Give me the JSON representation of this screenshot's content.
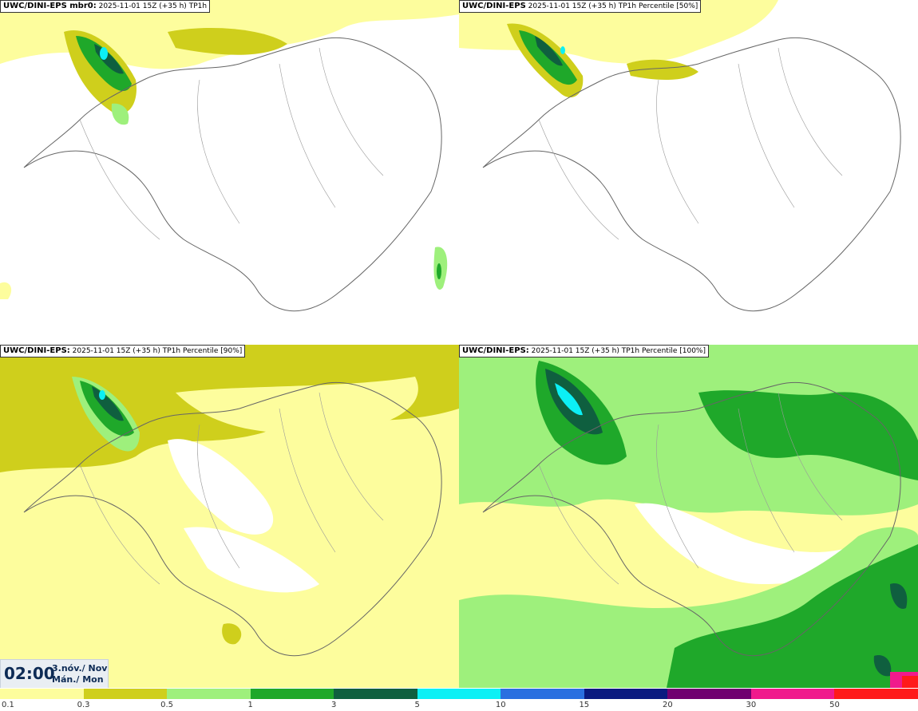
{
  "panels": [
    {
      "model": "UWC/DINI-EPS mbr0:",
      "meta": "2025-11-01 15Z (+35 h)",
      "field": "TP1h"
    },
    {
      "model": "UWC/DINI-EPS",
      "meta": "2025-11-01 15Z (+35 h)",
      "field": "TP1h Percentile [50%]"
    },
    {
      "model": "UWC/DINI-EPS:",
      "meta": "2025-11-01 15Z (+35 h)",
      "field": "TP1h Percentile [90%]"
    },
    {
      "model": "UWC/DINI-EPS:",
      "meta": "2025-11-01 15Z (+35 h)",
      "field": "TP1h Percentile [100%]"
    }
  ],
  "time": {
    "clock": "02:00",
    "date_line": "3.nóv./ Nov",
    "day_line": "Mán./ Mon"
  },
  "legend": {
    "labels": [
      "0.1",
      "0.3",
      "0.5",
      "1",
      "3",
      "5",
      "10",
      "15",
      "20",
      "30",
      "50"
    ],
    "colors": [
      "#fdfd9d",
      "#cfcf1c",
      "#9ef07c",
      "#1fa82a",
      "#0f5f3f",
      "#0cf0f5",
      "#2a6fe0",
      "#0a1a80",
      "#700070",
      "#f01a8c",
      "#ff1a1a"
    ]
  }
}
